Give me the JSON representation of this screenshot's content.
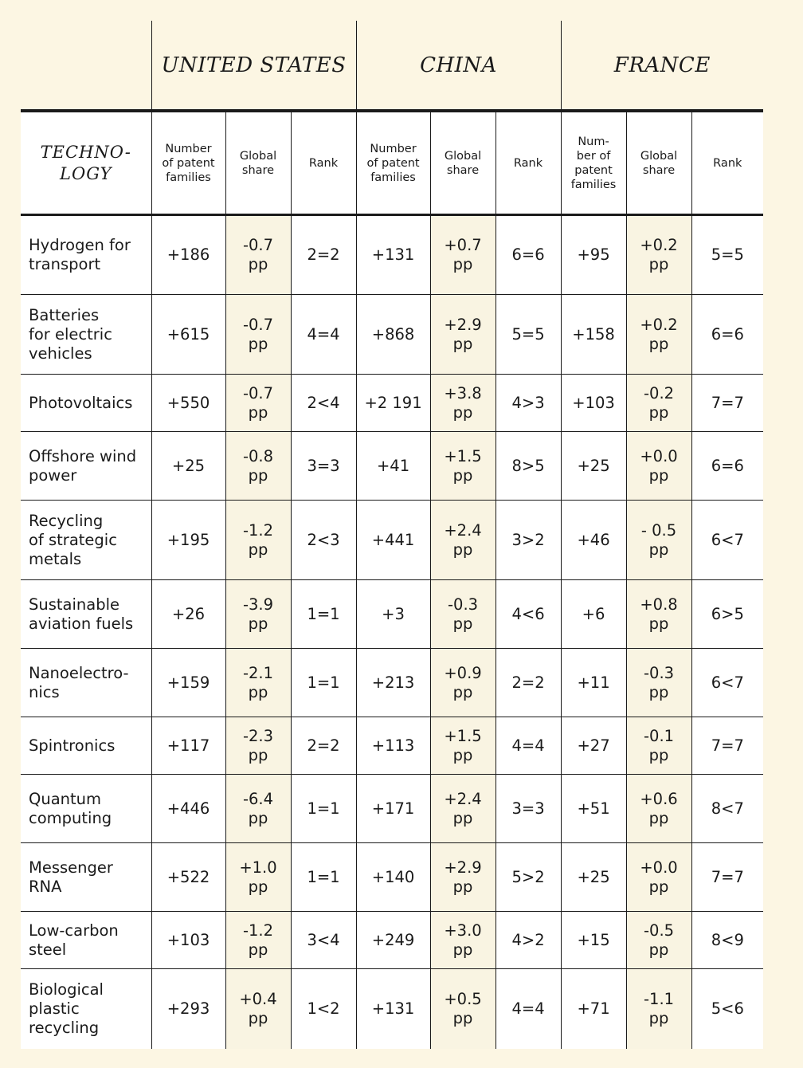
{
  "header": {
    "countries": [
      "UNITED STATES",
      "CHINA",
      "FRANCE"
    ],
    "technology_label": "TECHNO-\nLOGY",
    "metrics": [
      [
        "Number\nof patent\nfamilies",
        "Global\nshare",
        "Rank"
      ],
      [
        "Number\nof patent\nfamilies",
        "Global\nshare",
        "Rank"
      ],
      [
        "Num-\nber of\npatent\nfamilies",
        "Global\nshare",
        "Rank"
      ]
    ]
  },
  "rows": [
    {
      "tech": "Hydrogen for\ntransport",
      "h": 100,
      "us": [
        "+186",
        "-0.7\npp",
        "2=2"
      ],
      "cn": [
        "+131",
        "+0.7\npp",
        "6=6"
      ],
      "fr": [
        "+95",
        "+0.2\npp",
        "5=5"
      ]
    },
    {
      "tech": "Batteries\nfor electric\nvehicles",
      "h": 100,
      "us": [
        "+615",
        "-0.7\npp",
        "4=4"
      ],
      "cn": [
        "+868",
        "+2.9\npp",
        "5=5"
      ],
      "fr": [
        "+158",
        "+0.2\npp",
        "6=6"
      ]
    },
    {
      "tech": "Photovoltaics",
      "h": 72,
      "us": [
        "+550",
        "-0.7\npp",
        "2<4"
      ],
      "cn": [
        "+2 191",
        "+3.8\npp",
        "4>3"
      ],
      "fr": [
        "+103",
        "-0.2\npp",
        "7=7"
      ]
    },
    {
      "tech": "Offshore wind\npower",
      "h": 86,
      "us": [
        "+25",
        "-0.8\npp",
        "3=3"
      ],
      "cn": [
        "+41",
        "+1.5\npp",
        "8>5"
      ],
      "fr": [
        "+25",
        "+0.0\npp",
        "6=6"
      ]
    },
    {
      "tech": "Recycling\nof strategic\nmetals",
      "h": 100,
      "us": [
        "+195",
        "-1.2\npp",
        "2<3"
      ],
      "cn": [
        "+441",
        "+2.4\npp",
        "3>2"
      ],
      "fr": [
        "+46",
        "- 0.5\npp",
        "6<7"
      ]
    },
    {
      "tech": "Sustainable\naviation fuels",
      "h": 86,
      "us": [
        "+26",
        "-3.9\npp",
        "1=1"
      ],
      "cn": [
        "+3",
        "-0.3\npp",
        "4<6"
      ],
      "fr": [
        "+6",
        "+0.8\npp",
        "6>5"
      ]
    },
    {
      "tech": "Nanoelectro-\nnics",
      "h": 86,
      "us": [
        "+159",
        "-2.1\npp",
        "1=1"
      ],
      "cn": [
        "+213",
        "+0.9\npp",
        "2=2"
      ],
      "fr": [
        "+11",
        "-0.3\npp",
        "6<7"
      ]
    },
    {
      "tech": "Spintronics",
      "h": 72,
      "us": [
        "+117",
        "-2.3\npp",
        "2=2"
      ],
      "cn": [
        "+113",
        "+1.5\npp",
        "4=4"
      ],
      "fr": [
        "+27",
        "-0.1\npp",
        "7=7"
      ]
    },
    {
      "tech": "Quantum\ncomputing",
      "h": 86,
      "us": [
        "+446",
        "-6.4\npp",
        "1=1"
      ],
      "cn": [
        "+171",
        "+2.4\npp",
        "3=3"
      ],
      "fr": [
        "+51",
        "+0.6\npp",
        "8<7"
      ]
    },
    {
      "tech": "Messenger\nRNA",
      "h": 86,
      "us": [
        "+522",
        "+1.0\npp",
        "1=1"
      ],
      "cn": [
        "+140",
        "+2.9\npp",
        "5>2"
      ],
      "fr": [
        "+25",
        "+0.0\npp",
        "7=7"
      ]
    },
    {
      "tech": "Low-carbon\nsteel",
      "h": 72,
      "us": [
        "+103",
        "-1.2\npp",
        "3<4"
      ],
      "cn": [
        "+249",
        "+3.0\npp",
        "4>2"
      ],
      "fr": [
        "+15",
        "-0.5\npp",
        "8<9"
      ]
    },
    {
      "tech": "Biological\nplastic\nrecycling",
      "h": 100,
      "us": [
        "+293",
        "+0.4\npp",
        "1<2"
      ],
      "cn": [
        "+131",
        "+0.5\npp",
        "4=4"
      ],
      "fr": [
        "+71",
        "-1.1\npp",
        "5<6"
      ]
    }
  ]
}
